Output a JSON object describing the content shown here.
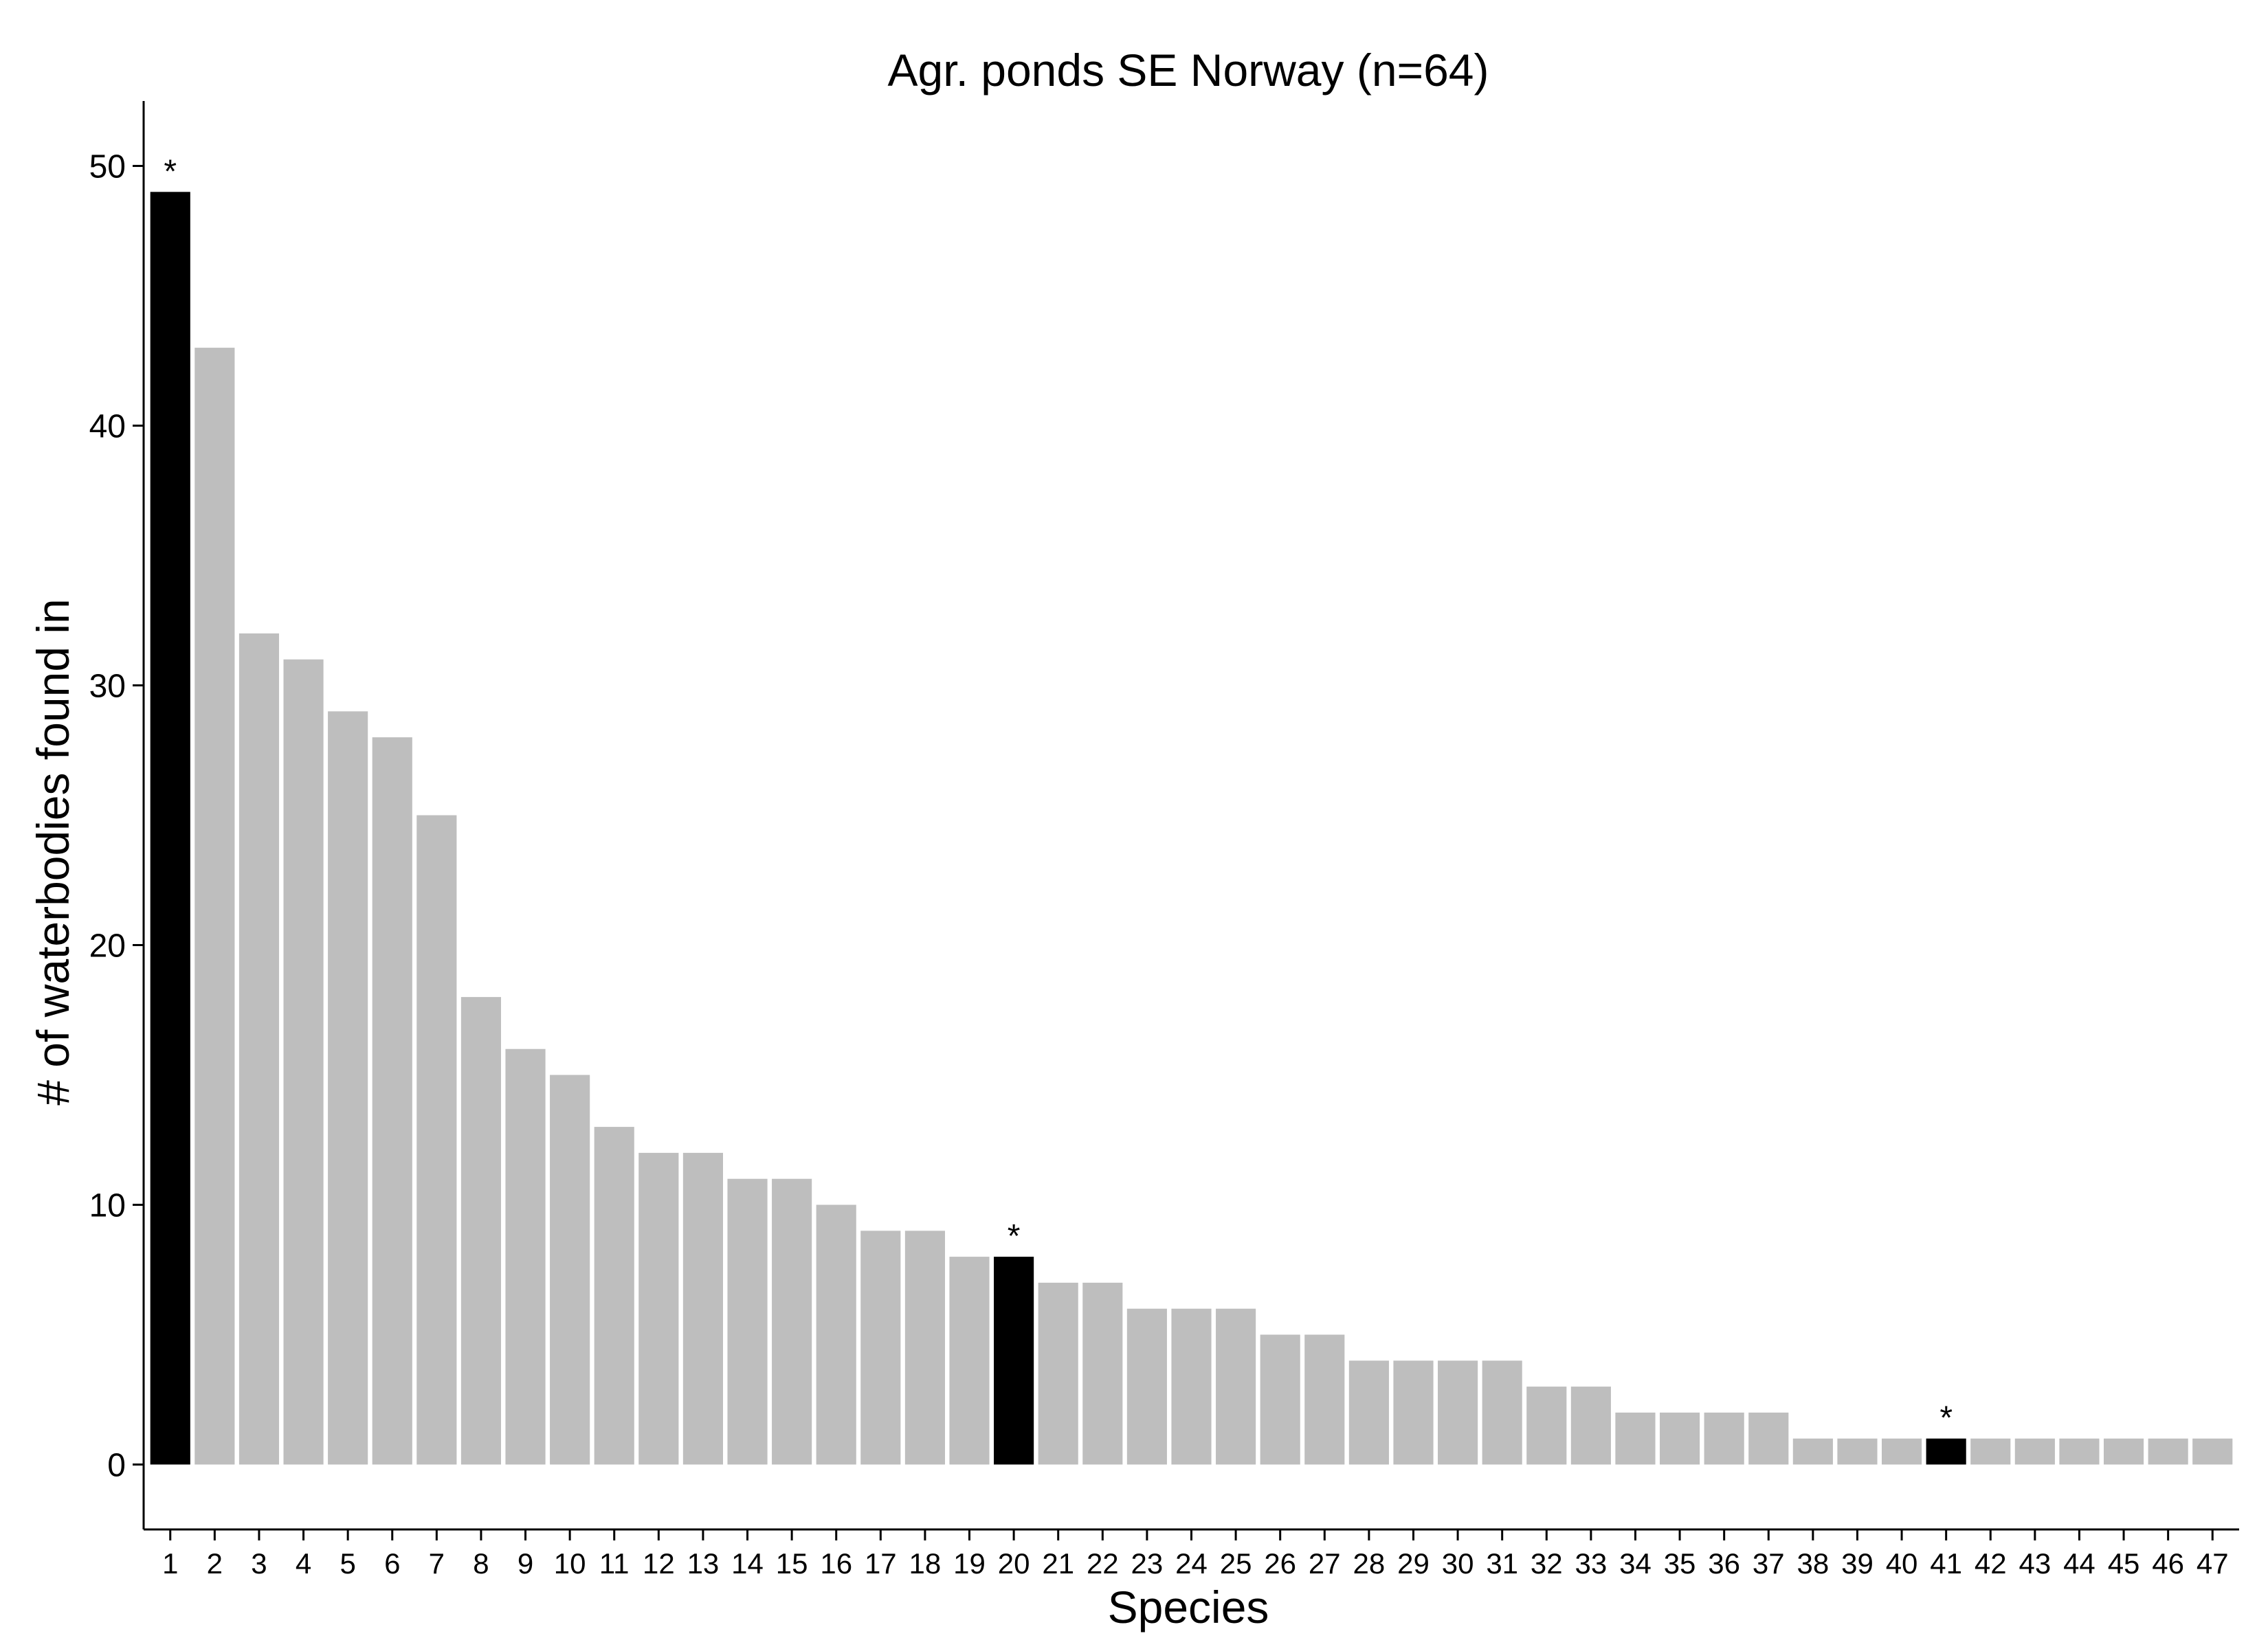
{
  "chart_data": {
    "type": "bar",
    "title": "Agr. ponds SE Norway (n=64)",
    "xlabel": "Species",
    "ylabel": "# of waterbodies found in",
    "ylim": [
      -2.5,
      52.5
    ],
    "yticks": [
      0,
      10,
      20,
      30,
      40,
      50
    ],
    "grid": false,
    "categories": [
      "1",
      "2",
      "3",
      "4",
      "5",
      "6",
      "7",
      "8",
      "9",
      "10",
      "11",
      "12",
      "13",
      "14",
      "15",
      "16",
      "17",
      "18",
      "19",
      "20",
      "21",
      "22",
      "23",
      "24",
      "25",
      "26",
      "27",
      "28",
      "29",
      "30",
      "31",
      "32",
      "33",
      "34",
      "35",
      "36",
      "37",
      "38",
      "39",
      "40",
      "41",
      "42",
      "43",
      "44",
      "45",
      "46",
      "47"
    ],
    "values": [
      49,
      43,
      32,
      31,
      29,
      28,
      25,
      18,
      16,
      15,
      13,
      12,
      12,
      11,
      11,
      10,
      9,
      9,
      8,
      8,
      7,
      7,
      6,
      6,
      6,
      5,
      5,
      4,
      4,
      4,
      4,
      3,
      3,
      2,
      2,
      2,
      2,
      1,
      1,
      1,
      1,
      1,
      1,
      1,
      1,
      1,
      1
    ],
    "highlighted": [
      1,
      20,
      41
    ],
    "highlight_marker": "*",
    "colors": {
      "bar": "#bebebe",
      "highlight": "#000000",
      "axis": "#000000",
      "background": "#ffffff"
    }
  }
}
